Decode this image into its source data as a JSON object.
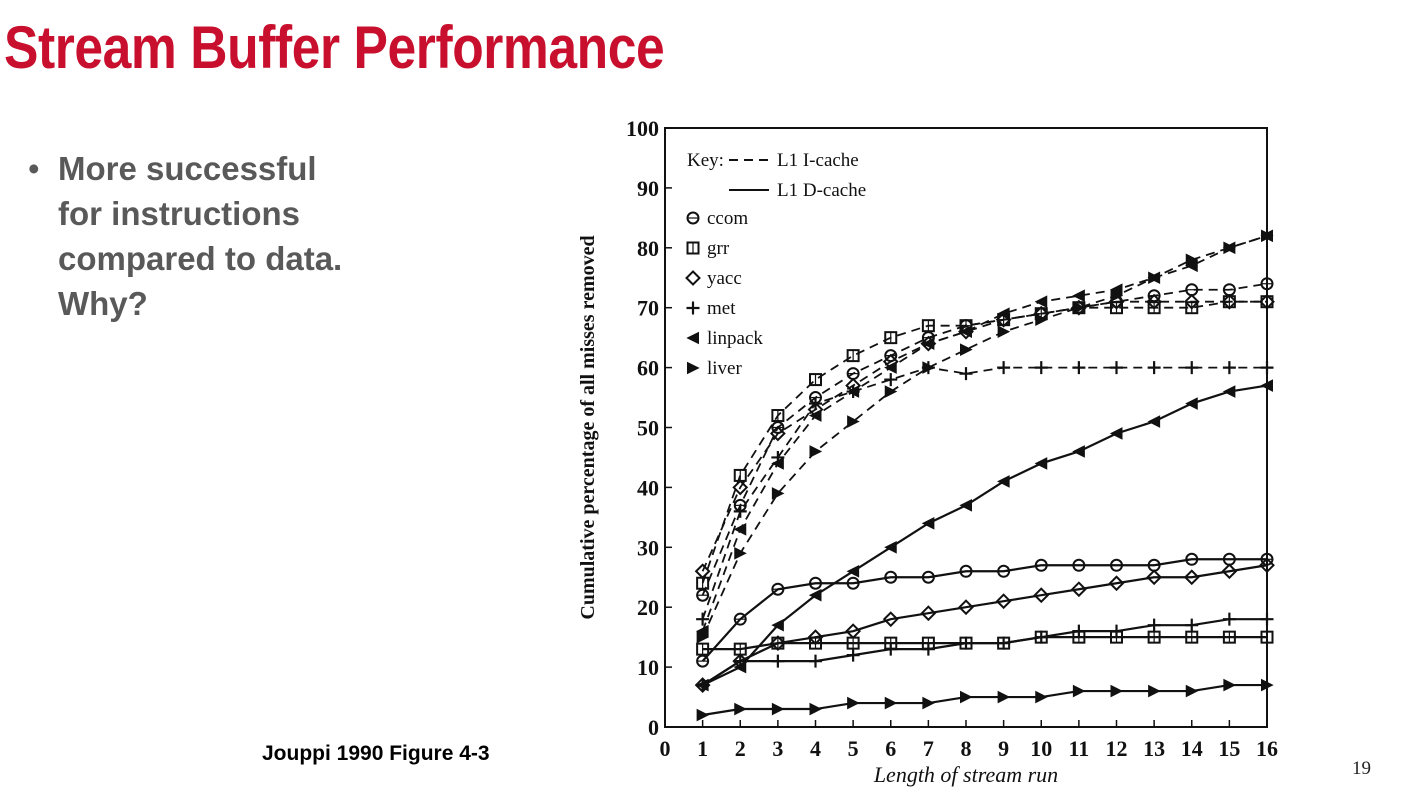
{
  "slide": {
    "title": "Stream Buffer Performance",
    "bullets": [
      "More successful\nfor instructions\ncompared to data.\nWhy?"
    ],
    "caption": "Jouppi 1990 Figure 4-3",
    "page_number": "19"
  },
  "colors": {
    "title": "#c8102e",
    "bullet_text": "#595959",
    "chart_ink": "#111111"
  },
  "chart_data": {
    "type": "line",
    "title": "",
    "xlabel": "Length of stream run",
    "ylabel": "Cumulative percentage of all misses removed",
    "xlim": [
      0,
      16
    ],
    "ylim": [
      0,
      100
    ],
    "x_ticks": [
      "0",
      "1",
      "2",
      "3",
      "4",
      "5",
      "6",
      "7",
      "8",
      "9",
      "10",
      "11",
      "12",
      "13",
      "14",
      "15",
      "16"
    ],
    "y_ticks": [
      "0",
      "10",
      "20",
      "30",
      "40",
      "50",
      "60",
      "70",
      "80",
      "90",
      "100"
    ],
    "grid": false,
    "legend": {
      "placement": "top-left",
      "key_label": "Key:",
      "line_styles": [
        {
          "label": "L1 I-cache",
          "style": "dashed"
        },
        {
          "label": "L1 D-cache",
          "style": "solid"
        }
      ],
      "markers": [
        {
          "label": "ccom",
          "marker": "circle"
        },
        {
          "label": "grr",
          "marker": "square"
        },
        {
          "label": "yacc",
          "marker": "diamond"
        },
        {
          "label": "met",
          "marker": "plus"
        },
        {
          "label": "linpack",
          "marker": "triangle-left"
        },
        {
          "label": "liver",
          "marker": "triangle-right"
        }
      ]
    },
    "x": [
      1,
      2,
      3,
      4,
      5,
      6,
      7,
      8,
      9,
      10,
      11,
      12,
      13,
      14,
      15,
      16
    ],
    "series": [
      {
        "name": "ccom",
        "cache": "L1 I-cache",
        "style": "dashed",
        "marker": "circle",
        "values": [
          22,
          37,
          50,
          55,
          59,
          62,
          65,
          67,
          68,
          69,
          70,
          71,
          72,
          73,
          73,
          74
        ]
      },
      {
        "name": "grr",
        "cache": "L1 I-cache",
        "style": "dashed",
        "marker": "square",
        "values": [
          24,
          42,
          52,
          58,
          62,
          65,
          67,
          67,
          68,
          69,
          70,
          70,
          70,
          70,
          71,
          71
        ]
      },
      {
        "name": "yacc",
        "cache": "L1 I-cache",
        "style": "dashed",
        "marker": "diamond",
        "values": [
          26,
          40,
          49,
          53,
          57,
          61,
          64,
          66,
          68,
          69,
          70,
          71,
          71,
          71,
          71,
          71
        ]
      },
      {
        "name": "met",
        "cache": "L1 I-cache",
        "style": "dashed",
        "marker": "plus",
        "values": [
          18,
          36,
          45,
          54,
          56,
          58,
          60,
          59,
          60,
          60,
          60,
          60,
          60,
          60,
          60,
          60
        ]
      },
      {
        "name": "linpack",
        "cache": "L1 I-cache",
        "style": "dashed",
        "marker": "triangle-left",
        "values": [
          16,
          33,
          44,
          52,
          56,
          60,
          64,
          66,
          69,
          71,
          72,
          73,
          75,
          77,
          80,
          82
        ]
      },
      {
        "name": "liver",
        "cache": "L1 I-cache",
        "style": "dashed",
        "marker": "triangle-right",
        "values": [
          15,
          29,
          39,
          46,
          51,
          56,
          60,
          63,
          66,
          68,
          70,
          72,
          75,
          78,
          80,
          82
        ]
      },
      {
        "name": "ccom",
        "cache": "L1 D-cache",
        "style": "solid",
        "marker": "circle",
        "values": [
          11,
          18,
          23,
          24,
          24,
          25,
          25,
          26,
          26,
          27,
          27,
          27,
          27,
          28,
          28,
          28
        ]
      },
      {
        "name": "grr",
        "cache": "L1 D-cache",
        "style": "solid",
        "marker": "square",
        "values": [
          13,
          13,
          14,
          14,
          14,
          14,
          14,
          14,
          14,
          15,
          15,
          15,
          15,
          15,
          15,
          15
        ]
      },
      {
        "name": "yacc",
        "cache": "L1 D-cache",
        "style": "solid",
        "marker": "diamond",
        "values": [
          7,
          11,
          14,
          15,
          16,
          18,
          19,
          20,
          21,
          22,
          23,
          24,
          25,
          25,
          26,
          27
        ]
      },
      {
        "name": "met",
        "cache": "L1 D-cache",
        "style": "solid",
        "marker": "plus",
        "values": [
          7,
          11,
          11,
          11,
          12,
          13,
          13,
          14,
          14,
          15,
          16,
          16,
          17,
          17,
          18,
          18
        ]
      },
      {
        "name": "linpack",
        "cache": "L1 D-cache",
        "style": "solid",
        "marker": "triangle-left",
        "values": [
          7,
          10,
          17,
          22,
          26,
          30,
          34,
          37,
          41,
          44,
          46,
          49,
          51,
          54,
          56,
          57
        ]
      },
      {
        "name": "liver",
        "cache": "L1 D-cache",
        "style": "solid",
        "marker": "triangle-right",
        "values": [
          2,
          3,
          3,
          3,
          4,
          4,
          4,
          5,
          5,
          5,
          6,
          6,
          6,
          6,
          7,
          7
        ]
      }
    ]
  }
}
